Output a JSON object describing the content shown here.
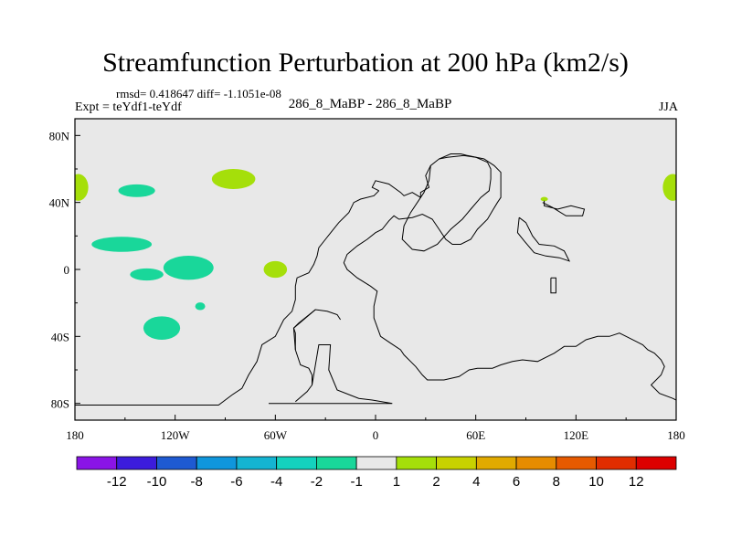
{
  "title": "Streamfunction Perturbation at 200 hPa (km2/s)",
  "stats": "rmsd= 0.418647  diff= -1.1051e-08",
  "experiment": "Expt = teYdf1-teYdf",
  "case_name": "286_8_MaBP - 286_8_MaBP",
  "season": "JJA",
  "colors": {
    "land_outline": "#000000",
    "background": "#e8e8e8",
    "neg_fill": "#19d79a",
    "pos_fill": "#a5df0a"
  },
  "chart_data": {
    "type": "heatmap",
    "projection": "cylindrical equidistant",
    "xlim": [
      -180,
      180
    ],
    "ylim": [
      -90,
      90
    ],
    "x_ticks": [
      {
        "value": -180,
        "label": "180"
      },
      {
        "value": -120,
        "label": "120W"
      },
      {
        "value": -60,
        "label": "60W"
      },
      {
        "value": 0,
        "label": "0"
      },
      {
        "value": 60,
        "label": "60E"
      },
      {
        "value": 120,
        "label": "120E"
      },
      {
        "value": 180,
        "label": "180"
      }
    ],
    "y_ticks": [
      {
        "value": 80,
        "label": "80N"
      },
      {
        "value": 40,
        "label": "40N"
      },
      {
        "value": 0,
        "label": "0"
      },
      {
        "value": -40,
        "label": "40S"
      },
      {
        "value": -80,
        "label": "80S"
      }
    ],
    "colorbar": {
      "labels": [
        "-12",
        "-10",
        "-8",
        "-6",
        "-4",
        "-2",
        "-1",
        "1",
        "2",
        "4",
        "6",
        "8",
        "10",
        "12"
      ],
      "colors": [
        "#8a14e6",
        "#3c1cdc",
        "#1e5ad2",
        "#0f96dc",
        "#14b4d2",
        "#14d2be",
        "#19d79a",
        "#e8e8e8",
        "#a5df0a",
        "#c8d200",
        "#e1aa00",
        "#e68c00",
        "#e65a00",
        "#e12d00",
        "#dc0000"
      ]
    },
    "anomalies": [
      {
        "name": "neg-nw-pacific",
        "lon": -143,
        "lat": 47,
        "rlon": 11,
        "rlat": 3.8,
        "color": "#19d79a"
      },
      {
        "name": "neg-tropical-east-pacific",
        "lon": -152,
        "lat": 15,
        "rlon": 18,
        "rlat": 4.5,
        "color": "#19d79a"
      },
      {
        "name": "neg-central-pacific",
        "lon": -137,
        "lat": -3,
        "rlon": 10,
        "rlat": 3.6,
        "color": "#19d79a"
      },
      {
        "name": "neg-south-pacific",
        "lon": -112,
        "lat": 1,
        "rlon": 15,
        "rlat": 7.2,
        "color": "#19d79a"
      },
      {
        "name": "neg-southern-subtropics",
        "lon": -128,
        "lat": -35,
        "rlon": 11,
        "rlat": 7,
        "color": "#19d79a"
      },
      {
        "name": "neg-small-patch",
        "lon": -105,
        "lat": -22,
        "rlon": 3,
        "rlat": 2.3,
        "color": "#19d79a"
      },
      {
        "name": "pos-dateline-west",
        "lon": -178,
        "lat": 49,
        "rlon": 6,
        "rlat": 8,
        "color": "#a5df0a"
      },
      {
        "name": "pos-north-america",
        "lon": -85,
        "lat": 54,
        "rlon": 13,
        "rlat": 6,
        "color": "#a5df0a"
      },
      {
        "name": "pos-south-america-west",
        "lon": -60,
        "lat": 0,
        "rlon": 7,
        "rlat": 5,
        "color": "#a5df0a"
      },
      {
        "name": "pos-dateline-east",
        "lon": 178,
        "lat": 49,
        "rlon": 6,
        "rlat": 8,
        "color": "#a5df0a"
      },
      {
        "name": "pos-small-tibet",
        "lon": 101,
        "lat": 42,
        "rlon": 2.2,
        "rlat": 1.3,
        "color": "#a5df0a"
      }
    ],
    "coastlines": [
      {
        "name": "south-america-coastline",
        "points": [
          [
            -180,
            -81
          ],
          [
            -94,
            -81
          ],
          [
            -86,
            -75
          ],
          [
            -80,
            -71
          ],
          [
            -76,
            -63
          ],
          [
            -71,
            -55
          ],
          [
            -68,
            -45
          ],
          [
            -60,
            -40
          ],
          [
            -55,
            -30
          ],
          [
            -50,
            -25
          ],
          [
            -48,
            -18
          ],
          [
            -48,
            -10
          ],
          [
            -47,
            -5
          ],
          [
            -40,
            -2
          ],
          [
            -37,
            3
          ],
          [
            -35,
            8
          ],
          [
            -34,
            13
          ],
          [
            -30,
            18
          ],
          [
            -26,
            23
          ],
          [
            -22,
            28
          ],
          [
            -16,
            34
          ],
          [
            -13,
            40
          ],
          [
            -9,
            42
          ],
          [
            -1,
            44
          ],
          [
            2,
            47
          ]
        ]
      },
      {
        "name": "south-america-west-coast",
        "points": [
          [
            -49,
            -35
          ],
          [
            -46,
            -32
          ],
          [
            -36,
            -24
          ],
          [
            -29,
            -25
          ],
          [
            -23,
            -27
          ],
          [
            -21,
            -30
          ]
        ]
      },
      {
        "name": "south-america-east-coast",
        "points": [
          [
            -49,
            -35
          ],
          [
            -48,
            -38
          ],
          [
            -48,
            -48
          ],
          [
            -45,
            -57
          ],
          [
            -40,
            -59
          ],
          [
            -38,
            -63
          ],
          [
            -38,
            -69
          ],
          [
            -41,
            -73
          ],
          [
            -48,
            -79
          ]
        ]
      },
      {
        "name": "south-america-inner",
        "points": [
          [
            -38,
            -69
          ],
          [
            -34,
            -45
          ],
          [
            -27,
            -45
          ],
          [
            -28,
            -60
          ],
          [
            -23,
            -72
          ],
          [
            -10,
            -77
          ],
          [
            -2,
            -78
          ],
          [
            10,
            -80
          ],
          [
            -64,
            -80
          ]
        ]
      },
      {
        "name": "africa-eurasia-coastline",
        "points": [
          [
            2,
            47
          ],
          [
            -2,
            49
          ],
          [
            0,
            53
          ],
          [
            8,
            51
          ],
          [
            15,
            46
          ],
          [
            17,
            44
          ],
          [
            22,
            46
          ],
          [
            27,
            43
          ],
          [
            27,
            46
          ],
          [
            32,
            49
          ],
          [
            30,
            56
          ],
          [
            33,
            62
          ],
          [
            38,
            66
          ],
          [
            45,
            69
          ],
          [
            51,
            69
          ],
          [
            55,
            68
          ],
          [
            65,
            66
          ],
          [
            71,
            62
          ],
          [
            75,
            58
          ],
          [
            75,
            50
          ],
          [
            75,
            43
          ],
          [
            73,
            40
          ],
          [
            70,
            35
          ],
          [
            67,
            30
          ],
          [
            61,
            24
          ],
          [
            57,
            18
          ],
          [
            51,
            15
          ],
          [
            46,
            15
          ],
          [
            42,
            18
          ],
          [
            38,
            24
          ],
          [
            34,
            30
          ],
          [
            28,
            33
          ],
          [
            22,
            31
          ],
          [
            14,
            30
          ],
          [
            11,
            32
          ],
          [
            8,
            29
          ],
          [
            4,
            24
          ],
          [
            0,
            22
          ],
          [
            -5,
            18
          ],
          [
            -11,
            14
          ],
          [
            -17,
            9
          ],
          [
            -19,
            4
          ],
          [
            -17,
            0
          ],
          [
            -11,
            -5
          ],
          [
            -3,
            -10
          ],
          [
            1,
            -13
          ],
          [
            -1,
            -22
          ],
          [
            -1,
            -29
          ],
          [
            3,
            -40
          ],
          [
            9,
            -44
          ],
          [
            15,
            -48
          ],
          [
            17,
            -51
          ],
          [
            21,
            -55
          ],
          [
            24,
            -58
          ],
          [
            28,
            -63
          ],
          [
            31,
            -66
          ],
          [
            41,
            -66
          ],
          [
            50,
            -64
          ],
          [
            56,
            -60
          ],
          [
            61,
            -59
          ],
          [
            70,
            -59
          ],
          [
            75,
            -57
          ],
          [
            82,
            -55
          ],
          [
            88,
            -54
          ],
          [
            97,
            -55
          ],
          [
            103,
            -52
          ],
          [
            107,
            -50
          ],
          [
            113,
            -46
          ],
          [
            120,
            -46
          ],
          [
            126,
            -42
          ],
          [
            133,
            -40
          ],
          [
            140,
            -40
          ],
          [
            146,
            -38
          ],
          [
            150,
            -40
          ],
          [
            156,
            -43
          ],
          [
            160,
            -45
          ],
          [
            163,
            -48
          ],
          [
            167,
            -50
          ],
          [
            171,
            -54
          ],
          [
            173,
            -58
          ],
          [
            171,
            -63
          ],
          [
            165,
            -69
          ],
          [
            170,
            -74
          ],
          [
            178,
            -77
          ],
          [
            180,
            -78
          ]
        ]
      },
      {
        "name": "arabia-inner-coastline",
        "points": [
          [
            33,
            62
          ],
          [
            32,
            53
          ],
          [
            29,
            46
          ],
          [
            21,
            34
          ],
          [
            17,
            26
          ],
          [
            16,
            18
          ],
          [
            22,
            12
          ],
          [
            29,
            11
          ],
          [
            37,
            15
          ],
          [
            45,
            24
          ],
          [
            52,
            30
          ],
          [
            57,
            36
          ],
          [
            63,
            43
          ],
          [
            68,
            47
          ],
          [
            69,
            54
          ],
          [
            69,
            60
          ],
          [
            67,
            64
          ],
          [
            60,
            67
          ],
          [
            53,
            68
          ],
          [
            43,
            67
          ],
          [
            38,
            66
          ]
        ]
      },
      {
        "name": "india-peninsula",
        "points": [
          [
            86,
            31
          ],
          [
            85,
            22
          ],
          [
            89,
            17
          ],
          [
            95,
            10
          ],
          [
            102,
            8
          ],
          [
            110,
            7
          ],
          [
            116,
            5
          ],
          [
            113,
            11
          ],
          [
            107,
            14
          ],
          [
            98,
            15
          ],
          [
            94,
            20
          ],
          [
            90,
            28
          ],
          [
            86,
            31
          ]
        ]
      },
      {
        "name": "indian-ocean-island",
        "points": [
          [
            105,
            -5
          ],
          [
            105,
            -14
          ],
          [
            108,
            -14
          ],
          [
            108,
            -5
          ],
          [
            105,
            -5
          ]
        ]
      },
      {
        "name": "north-australia-coast",
        "points": [
          [
            101,
            41
          ],
          [
            101,
            38
          ],
          [
            109,
            36
          ],
          [
            117,
            38
          ],
          [
            125,
            36
          ],
          [
            124,
            32
          ],
          [
            114,
            32
          ],
          [
            106,
            37
          ],
          [
            100,
            40
          ]
        ]
      },
      {
        "name": "southern-isles",
        "points": [
          [
            -36,
            -24
          ],
          [
            -49,
            -35
          ],
          [
            -48,
            -48
          ]
        ]
      }
    ]
  }
}
